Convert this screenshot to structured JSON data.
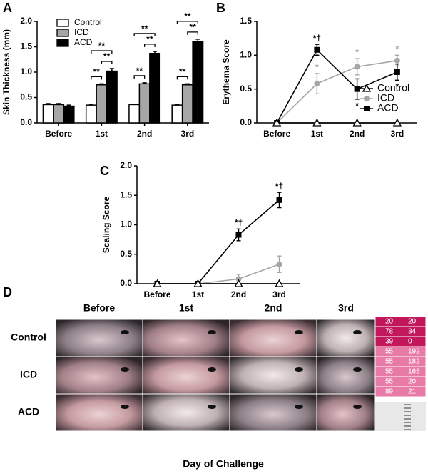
{
  "chart_data": [
    {
      "type": "bar",
      "panel": "A",
      "ylabel": "Skin Thickness (mm)",
      "categories": [
        "Before",
        "1st",
        "2nd",
        "3rd"
      ],
      "ylim": [
        0,
        2
      ],
      "yticks": [
        {
          "value": 0,
          "label": "0.0"
        },
        0.5,
        {
          "value": 1,
          "label": "1.0"
        },
        1.5,
        {
          "value": 2,
          "label": "2.0"
        }
      ],
      "edgecolor": "#000000",
      "legend": "upper left",
      "series": [
        {
          "name": "Control",
          "color": "#ffffff",
          "values": [
            0.36,
            0.35,
            0.36,
            0.35
          ],
          "errors": [
            0.02,
            0.01,
            0.01,
            0.01
          ]
        },
        {
          "name": "ICD",
          "color": "#a6a6a6",
          "values": [
            0.36,
            0.75,
            0.77,
            0.75
          ],
          "errors": [
            0.02,
            0.02,
            0.02,
            0.02
          ]
        },
        {
          "name": "ACD",
          "color": "#000000",
          "values": [
            0.33,
            1.02,
            1.37,
            1.6
          ],
          "errors": [
            0.02,
            0.05,
            0.04,
            0.05
          ]
        }
      ],
      "annotations": [
        {
          "text": "**",
          "category": "1st",
          "between": [
            "Control",
            "ICD"
          ]
        },
        {
          "text": "**",
          "category": "1st",
          "between": [
            "ICD",
            "ACD"
          ]
        },
        {
          "text": "**",
          "category": "1st",
          "between": [
            "Control",
            "ACD"
          ]
        },
        {
          "text": "**",
          "category": "2nd",
          "between": [
            "Control",
            "ICD"
          ]
        },
        {
          "text": "**",
          "category": "2nd",
          "between": [
            "ICD",
            "ACD"
          ]
        },
        {
          "text": "**",
          "category": "2nd",
          "between": [
            "Control",
            "ACD"
          ]
        },
        {
          "text": "**",
          "category": "3rd",
          "between": [
            "Control",
            "ICD"
          ]
        },
        {
          "text": "**",
          "category": "3rd",
          "between": [
            "ICD",
            "ACD"
          ]
        },
        {
          "text": "**",
          "category": "3rd",
          "between": [
            "Control",
            "ACD"
          ]
        }
      ]
    },
    {
      "type": "line",
      "panel": "B",
      "ylabel": "Erythema Score",
      "categories": [
        "Before",
        "1st",
        "2nd",
        "3rd"
      ],
      "ylim": [
        0,
        1.5
      ],
      "yticks": [
        {
          "value": 0,
          "label": "0.0"
        },
        0.5,
        {
          "value": 1,
          "label": "1.0"
        },
        1.5
      ],
      "legend": "lower right",
      "series": [
        {
          "name": "Control",
          "color": "#000000",
          "marker": "triangle-open",
          "values": [
            0,
            0,
            0,
            0
          ],
          "errors": [
            0,
            0,
            0,
            0
          ]
        },
        {
          "name": "ICD",
          "color": "#a6a6a6",
          "marker": "circle",
          "values": [
            0,
            0.58,
            0.83,
            0.92
          ],
          "errors": [
            0,
            0.15,
            0.12,
            0.08
          ]
        },
        {
          "name": "ACD",
          "color": "#000000",
          "marker": "square",
          "values": [
            0,
            1.08,
            0.5,
            0.75
          ],
          "errors": [
            0,
            0.08,
            0.15,
            0.12
          ]
        }
      ],
      "annotations": [
        {
          "text": "*†",
          "series": "ACD",
          "category": "1st",
          "side": "above"
        },
        {
          "text": "*",
          "series": "ICD",
          "category": "1st",
          "side": "above"
        },
        {
          "text": "*",
          "series": "ICD",
          "category": "2nd",
          "side": "above"
        },
        {
          "text": "*",
          "series": "ICD",
          "category": "3rd",
          "side": "above"
        },
        {
          "text": "*",
          "series": "ACD",
          "category": "2nd",
          "side": "below"
        },
        {
          "text": "*",
          "series": "ACD",
          "category": "3rd",
          "side": "below"
        }
      ]
    },
    {
      "type": "line",
      "panel": "C",
      "ylabel": "Scaling Score",
      "categories": [
        "Before",
        "1st",
        "2nd",
        "3rd"
      ],
      "ylim": [
        0,
        2
      ],
      "yticks": [
        {
          "value": 0,
          "label": "0.0"
        },
        0.5,
        {
          "value": 1,
          "label": "1.0"
        },
        1.5,
        {
          "value": 2,
          "label": "2.0"
        }
      ],
      "series": [
        {
          "name": "Control",
          "color": "#000000",
          "marker": "triangle-open",
          "values": [
            0,
            0,
            0,
            0
          ],
          "errors": [
            0,
            0,
            0,
            0
          ]
        },
        {
          "name": "ICD",
          "color": "#a6a6a6",
          "marker": "circle",
          "values": [
            0,
            0,
            0.08,
            0.33
          ],
          "errors": [
            0,
            0,
            0.08,
            0.14
          ]
        },
        {
          "name": "ACD",
          "color": "#000000",
          "marker": "square",
          "values": [
            0,
            0,
            0.83,
            1.42
          ],
          "errors": [
            0,
            0,
            0.1,
            0.13
          ]
        }
      ],
      "annotations": [
        {
          "text": "*†",
          "series": "ACD",
          "category": "2nd",
          "side": "above"
        },
        {
          "text": "*†",
          "series": "ACD",
          "category": "3rd",
          "side": "above"
        }
      ]
    }
  ],
  "photo_panel": {
    "panel": "D",
    "columns": [
      "Before",
      "1st",
      "2nd",
      "3rd"
    ],
    "rows": [
      "Control",
      "ICD",
      "ACD"
    ],
    "xlabel": "Day of Challenge",
    "color_card": [
      [
        "20",
        "20"
      ],
      [
        "78",
        "34"
      ],
      [
        "39",
        "0"
      ],
      [
        "55",
        "192"
      ],
      [
        "55",
        "182"
      ],
      [
        "55",
        "165"
      ],
      [
        "55",
        "20"
      ],
      [
        "89",
        "21"
      ]
    ]
  }
}
